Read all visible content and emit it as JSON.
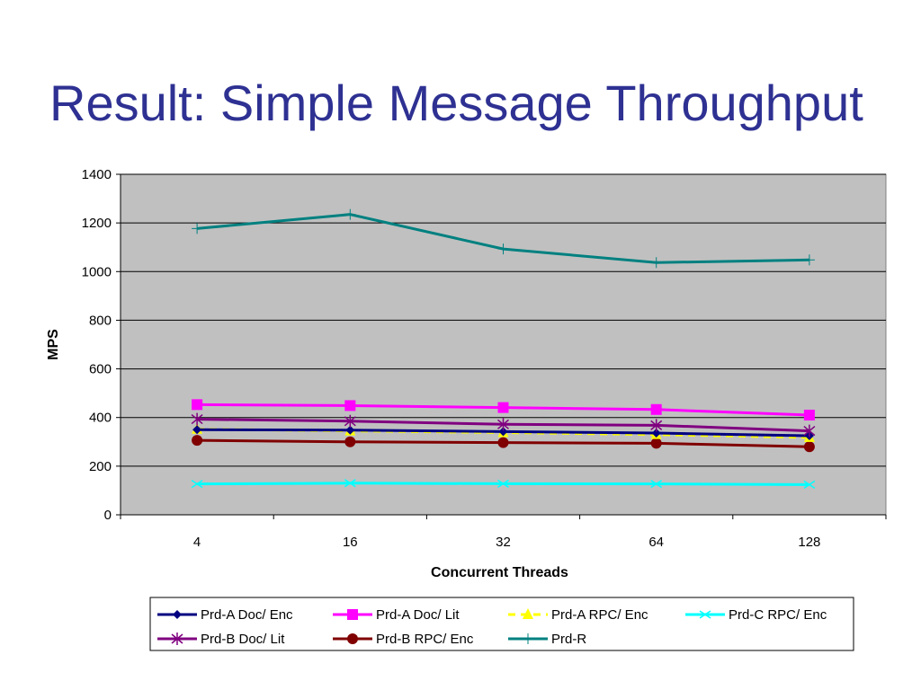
{
  "slide": {
    "title": "Result: Simple Message Throughput"
  },
  "chart_data": {
    "type": "line",
    "categories": [
      "4",
      "16",
      "32",
      "64",
      "128"
    ],
    "xlabel": "Concurrent Threads",
    "ylabel": "MPS",
    "ylim": [
      0,
      1400
    ],
    "yticks": [
      0,
      200,
      400,
      600,
      800,
      1000,
      1200,
      1400
    ],
    "grid": "horizontal",
    "plot_background": "#C0C0C0",
    "legend_position": "bottom",
    "series": [
      {
        "name": "Prd-A Doc/ Enc",
        "values": [
          350,
          348,
          342,
          336,
          325
        ],
        "color": "#000080",
        "marker": "diamond",
        "dash": ""
      },
      {
        "name": "Prd-A Doc/ Lit",
        "values": [
          453,
          449,
          441,
          433,
          410
        ],
        "color": "#FF00FF",
        "marker": "square",
        "dash": ""
      },
      {
        "name": "Prd-A RPC/ Enc",
        "values": [
          352,
          345,
          338,
          330,
          318
        ],
        "color": "#FFFF00",
        "marker": "triangle",
        "dash": "8,6"
      },
      {
        "name": "Prd-C RPC/ Enc",
        "values": [
          127,
          130,
          128,
          127,
          124
        ],
        "color": "#00FFFF",
        "marker": "x",
        "dash": ""
      },
      {
        "name": "Prd-B Doc/ Lit",
        "values": [
          393,
          385,
          372,
          368,
          345
        ],
        "color": "#800080",
        "marker": "star",
        "dash": ""
      },
      {
        "name": "Prd-B RPC/ Enc",
        "values": [
          306,
          300,
          297,
          294,
          280
        ],
        "color": "#800000",
        "marker": "circle",
        "dash": ""
      },
      {
        "name": "Prd-R",
        "values": [
          1177,
          1235,
          1093,
          1037,
          1048
        ],
        "color": "#008080",
        "marker": "plus",
        "dash": ""
      }
    ]
  }
}
